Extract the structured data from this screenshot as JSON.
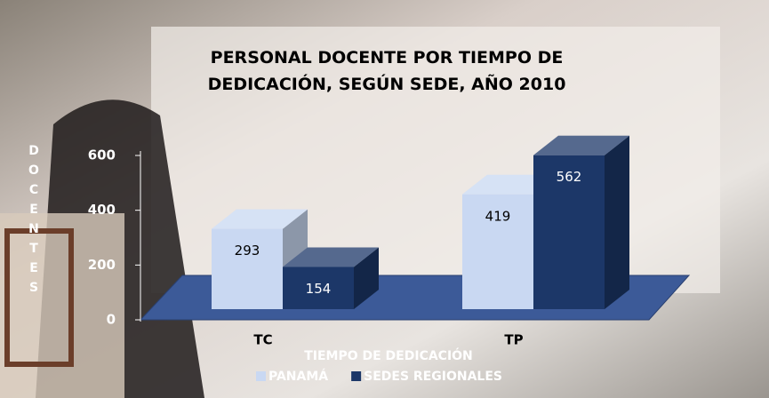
{
  "chart_data": {
    "type": "bar3d",
    "title": "PERSONAL DOCENTE POR TIEMPO DE DEDICACIÓN, SEGÚN SEDE, AÑO 2010",
    "x_label": "TIEMPO DE DEDICACIÓN",
    "y_label": "DOCENTES",
    "categories": [
      "TC",
      "TP"
    ],
    "series": [
      {
        "name": "PANAMÁ",
        "color": "#c9d8f2",
        "values": [
          293,
          419
        ]
      },
      {
        "name": "SEDES REGIONALES",
        "color": "#1c3768",
        "values": [
          154,
          562
        ]
      }
    ],
    "ylim": [
      0,
      600
    ],
    "yticks": [
      0,
      200,
      400,
      600
    ]
  }
}
